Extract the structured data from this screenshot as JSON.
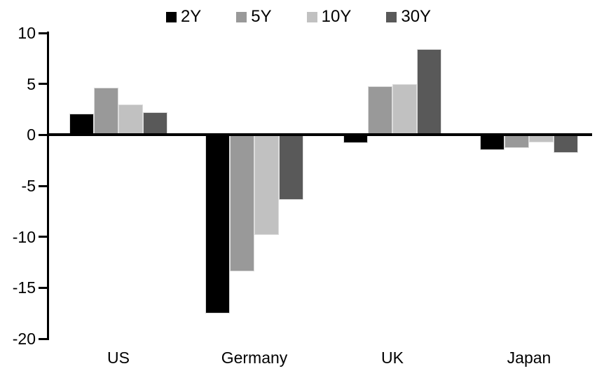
{
  "chart_data": {
    "type": "bar",
    "title": "",
    "xlabel": "",
    "ylabel": "",
    "categories": [
      "US",
      "Germany",
      "UK",
      "Japan"
    ],
    "series": [
      {
        "name": "2Y",
        "color": "#000000",
        "values": [
          2.1,
          -17.5,
          -0.8,
          -1.5
        ]
      },
      {
        "name": "5Y",
        "color": "#999999",
        "values": [
          4.6,
          -13.4,
          4.8,
          -1.3
        ]
      },
      {
        "name": "10Y",
        "color": "#c1c1c1",
        "values": [
          3.0,
          -9.8,
          5.0,
          -0.7
        ]
      },
      {
        "name": "30Y",
        "color": "#595959",
        "values": [
          2.2,
          -6.4,
          8.4,
          -1.8
        ]
      }
    ],
    "ylim": [
      -20,
      10
    ],
    "yticks": [
      10,
      5,
      0,
      -5,
      -10,
      -15,
      -20
    ],
    "grid": false,
    "legend_position": "top-center",
    "axis_color": "#000000",
    "background_color": "#ffffff"
  }
}
